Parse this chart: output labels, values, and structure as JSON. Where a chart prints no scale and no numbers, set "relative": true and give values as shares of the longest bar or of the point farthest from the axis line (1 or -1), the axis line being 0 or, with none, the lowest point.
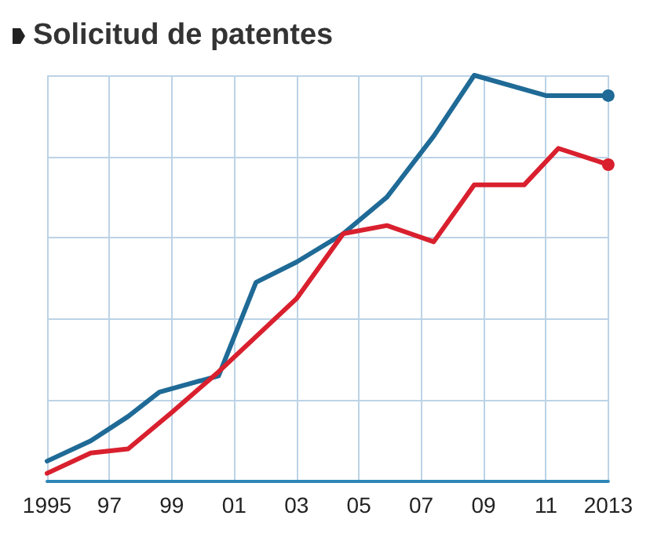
{
  "chart_data": {
    "type": "line",
    "title": "Solicitud de patentes",
    "relative": true,
    "xlim": [
      1995,
      2013
    ],
    "xticks": [
      1995,
      {
        "value": 1997,
        "label": "97"
      },
      {
        "value": 1999,
        "label": "99"
      },
      {
        "value": 2001,
        "label": "01"
      },
      {
        "value": 2003,
        "label": "03"
      },
      {
        "value": 2005,
        "label": "05"
      },
      {
        "value": 2007,
        "label": "07"
      },
      {
        "value": 2009,
        "label": "09"
      },
      {
        "value": 2011,
        "label": "11"
      },
      2013
    ],
    "grid": true,
    "series": [
      {
        "color": "#1f6a96",
        "x": [
          1995,
          1996.4,
          1997.6,
          1998.6,
          2000.5,
          2001.7,
          2003.0,
          2004.5,
          2005.9,
          2007.4,
          2008.7,
          2011.0,
          2013
        ],
        "values": [
          0.05,
          0.1,
          0.16,
          0.22,
          0.26,
          0.49,
          0.54,
          0.61,
          0.7,
          0.85,
          1,
          0.95,
          0.95
        ]
      },
      {
        "color": "#d9202e",
        "x": [
          1995,
          1996.4,
          1997.6,
          1999.0,
          2000.5,
          2003.0,
          2004.5,
          2005.9,
          2007.4,
          2008.7,
          2010.3,
          2011.4,
          2013
        ],
        "values": [
          0.02,
          0.07,
          0.08,
          0.17,
          0.27,
          0.45,
          0.61,
          0.63,
          0.59,
          0.73,
          0.73,
          0.82,
          0.78
        ]
      }
    ]
  }
}
